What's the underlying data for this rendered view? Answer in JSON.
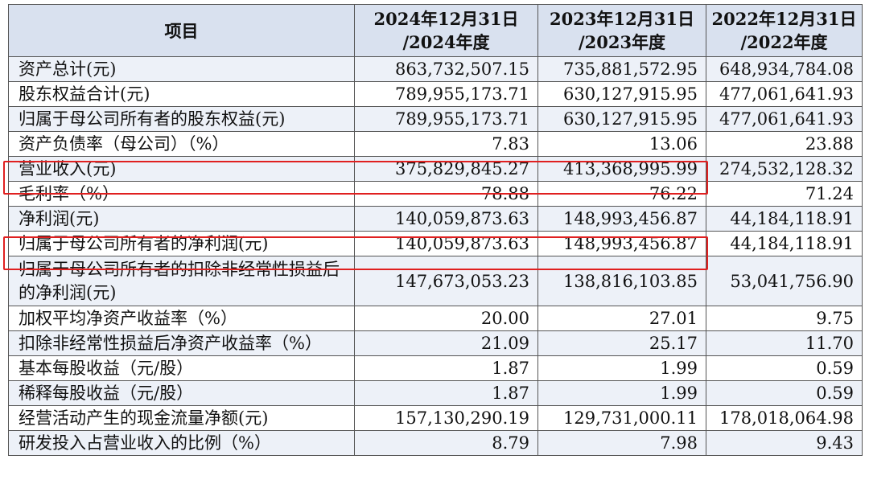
{
  "table": {
    "header": {
      "item": "项目",
      "col1_line1": "2024年12月31日",
      "col1_line2": "/2024年度",
      "col2_line1": "2023年12月31日",
      "col2_line2": "/2023年度",
      "col3_line1": "2022年12月31日",
      "col3_line2": "/2022年度"
    },
    "rows": [
      {
        "label": "资产总计(元)",
        "v2024": "863,732,507.15",
        "v2023": "735,881,572.95",
        "v2022": "648,934,784.08"
      },
      {
        "label": "股东权益合计(元)",
        "v2024": "789,955,173.71",
        "v2023": "630,127,915.95",
        "v2022": "477,061,641.93"
      },
      {
        "label": "归属于母公司所有者的股东权益(元)",
        "v2024": "789,955,173.71",
        "v2023": "630,127,915.95",
        "v2022": "477,061,641.93"
      },
      {
        "label": "资产负债率（母公司）（%）",
        "v2024": "7.83",
        "v2023": "13.06",
        "v2022": "23.88"
      },
      {
        "label": "营业收入(元)",
        "v2024": "375,829,845.27",
        "v2023": "413,368,995.99",
        "v2022": "274,532,128.32"
      },
      {
        "label": "毛利率（%）",
        "v2024": "78.88",
        "v2023": "76.22",
        "v2022": "71.24"
      },
      {
        "label": "净利润(元)",
        "v2024": "140,059,873.63",
        "v2023": "148,993,456.87",
        "v2022": "44,184,118.91"
      },
      {
        "label": "归属于母公司所有者的净利润(元)",
        "v2024": "140,059,873.63",
        "v2023": "148,993,456.87",
        "v2022": "44,184,118.91"
      },
      {
        "label": "归属于母公司所有者的扣除非经常性损益后的净利润(元)",
        "v2024": "147,673,053.23",
        "v2023": "138,816,103.85",
        "v2022": "53,041,756.90"
      },
      {
        "label": "加权平均净资产收益率（%）",
        "v2024": "20.00",
        "v2023": "27.01",
        "v2022": "9.75"
      },
      {
        "label": "扣除非经常性损益后净资产收益率（%）",
        "v2024": "21.09",
        "v2023": "25.17",
        "v2022": "11.70"
      },
      {
        "label": "基本每股收益（元/股）",
        "v2024": "1.87",
        "v2023": "1.99",
        "v2022": "0.59"
      },
      {
        "label": "稀释每股收益（元/股）",
        "v2024": "1.87",
        "v2023": "1.99",
        "v2022": "0.59"
      },
      {
        "label": "经营活动产生的现金流量净额(元)",
        "v2024": "157,130,290.19",
        "v2023": "129,731,000.11",
        "v2022": "178,018,064.98"
      },
      {
        "label": "研发投入占营业收入的比例（%）",
        "v2024": "8.79",
        "v2023": "7.98",
        "v2022": "9.43"
      }
    ]
  },
  "highlight_color": "#e02020",
  "header_bg": "#d9e1ef",
  "stripe_bg": "#edf1f8"
}
